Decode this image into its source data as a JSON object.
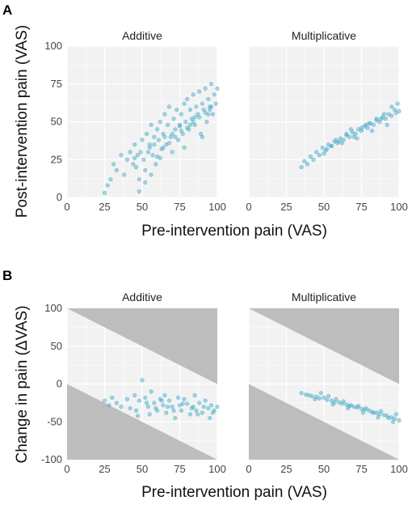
{
  "panel_labels": [
    "A",
    "B"
  ],
  "facets": [
    "Additive",
    "Multiplicative"
  ],
  "panel_a": {
    "ylabel": "Post-intervention pain (VAS)",
    "xlabel": "Pre-intervention pain (VAS)",
    "xticks": [
      0,
      25,
      50,
      75,
      100
    ],
    "yticks": [
      0,
      25,
      50,
      75,
      100
    ]
  },
  "panel_b": {
    "ylabel": "Change in pain (ΔVAS)",
    "xlabel": "Pre-intervention pain (VAS)",
    "xticks": [
      0,
      25,
      50,
      75,
      100
    ],
    "yticks": [
      -100,
      -50,
      0,
      50,
      100
    ]
  },
  "colors": {
    "point": "#3ca7c6",
    "panel_bg": "#f2f2f2",
    "grid": "#ffffff",
    "shade": "#bdbdbd"
  },
  "chart_data": [
    {
      "type": "scatter",
      "panel": "A",
      "title": "Additive",
      "xlabel": "Pre-intervention pain (VAS)",
      "ylabel": "Post-intervention pain (VAS)",
      "xlim": [
        0,
        100
      ],
      "ylim": [
        0,
        100
      ],
      "grid": true,
      "x": [
        25,
        27,
        29,
        31,
        33,
        36,
        38,
        40,
        42,
        44,
        45,
        46,
        47,
        48,
        49,
        50,
        51,
        52,
        53,
        54,
        55,
        56,
        57,
        58,
        59,
        60,
        61,
        62,
        63,
        64,
        65,
        66,
        67,
        68,
        69,
        70,
        71,
        72,
        73,
        74,
        75,
        76,
        77,
        78,
        79,
        80,
        81,
        82,
        83,
        84,
        85,
        86,
        87,
        88,
        89,
        90,
        91,
        92,
        93,
        94,
        95,
        96,
        97,
        98,
        99,
        100,
        48,
        52,
        56,
        60,
        64,
        68,
        72,
        76,
        80,
        84,
        88,
        92,
        96,
        55,
        65,
        75,
        85,
        95,
        45,
        58,
        70,
        82,
        94,
        62,
        78,
        90
      ],
      "y": [
        3,
        8,
        12,
        22,
        18,
        28,
        15,
        25,
        30,
        22,
        35,
        20,
        28,
        12,
        30,
        38,
        25,
        18,
        42,
        30,
        35,
        48,
        28,
        40,
        22,
        45,
        38,
        50,
        32,
        42,
        55,
        35,
        48,
        60,
        40,
        30,
        52,
        45,
        58,
        38,
        48,
        55,
        42,
        62,
        50,
        65,
        45,
        58,
        52,
        68,
        48,
        60,
        55,
        70,
        42,
        62,
        58,
        72,
        50,
        65,
        60,
        75,
        55,
        68,
        62,
        72,
        4,
        10,
        15,
        27,
        33,
        36,
        40,
        44,
        46,
        50,
        53,
        56,
        60,
        33,
        40,
        47,
        53,
        58,
        26,
        35,
        42,
        48,
        55,
        26,
        33,
        40
      ]
    },
    {
      "type": "scatter",
      "panel": "A",
      "title": "Multiplicative",
      "xlabel": "Pre-intervention pain (VAS)",
      "ylabel": "Post-intervention pain (VAS)",
      "xlim": [
        0,
        100
      ],
      "ylim": [
        0,
        100
      ],
      "grid": true,
      "x": [
        35,
        37,
        39,
        41,
        43,
        45,
        47,
        49,
        51,
        53,
        55,
        57,
        59,
        61,
        63,
        65,
        67,
        69,
        71,
        73,
        75,
        77,
        79,
        81,
        83,
        85,
        87,
        89,
        91,
        93,
        95,
        97,
        99,
        100,
        50,
        55,
        60,
        65,
        70,
        75,
        80,
        85,
        90,
        95,
        52,
        62,
        72,
        82,
        92,
        58,
        68,
        78,
        88,
        98
      ],
      "y": [
        20,
        24,
        22,
        27,
        25,
        30,
        28,
        33,
        31,
        35,
        34,
        37,
        36,
        39,
        38,
        41,
        40,
        43,
        42,
        45,
        44,
        47,
        46,
        49,
        48,
        51,
        50,
        53,
        52,
        55,
        54,
        58,
        62,
        57,
        29,
        34,
        37,
        42,
        40,
        46,
        49,
        52,
        55,
        60,
        32,
        36,
        39,
        44,
        48,
        38,
        45,
        48,
        52,
        56
      ]
    },
    {
      "type": "scatter",
      "panel": "B",
      "title": "Additive",
      "xlabel": "Pre-intervention pain (VAS)",
      "ylabel": "Change in pain (ΔVAS)",
      "xlim": [
        0,
        100
      ],
      "ylim": [
        -100,
        100
      ],
      "grid": true,
      "shaded_regions": "outside bounds y >= -x and y <= 100 - x",
      "x": [
        25,
        28,
        30,
        33,
        36,
        40,
        42,
        45,
        47,
        48,
        50,
        52,
        54,
        55,
        56,
        58,
        60,
        62,
        64,
        65,
        66,
        68,
        70,
        72,
        74,
        75,
        76,
        78,
        80,
        82,
        84,
        85,
        86,
        88,
        90,
        92,
        94,
        95,
        96,
        98,
        100,
        46,
        53,
        59,
        63,
        67,
        71,
        77,
        83,
        87,
        91,
        97
      ],
      "y": [
        -22,
        -28,
        -18,
        -25,
        -30,
        -20,
        -32,
        -15,
        -42,
        -22,
        5,
        -18,
        -30,
        -40,
        -10,
        -25,
        -35,
        -20,
        -28,
        -15,
        -38,
        -22,
        -30,
        -45,
        -18,
        -28,
        -35,
        -20,
        -26,
        -40,
        -30,
        -15,
        -35,
        -25,
        -38,
        -22,
        -32,
        -45,
        -28,
        -35,
        -30,
        -35,
        -25,
        -32,
        -22,
        -30,
        -35,
        -26,
        -32,
        -40,
        -30,
        -38
      ]
    },
    {
      "type": "scatter",
      "panel": "B",
      "title": "Multiplicative",
      "xlabel": "Pre-intervention pain (VAS)",
      "ylabel": "Change in pain (ΔVAS)",
      "xlim": [
        0,
        100
      ],
      "ylim": [
        -100,
        100
      ],
      "grid": true,
      "shaded_regions": "outside bounds y >= -x and y <= 100 - x",
      "x": [
        35,
        38,
        40,
        42,
        45,
        47,
        50,
        52,
        55,
        57,
        60,
        62,
        65,
        67,
        70,
        72,
        75,
        77,
        80,
        82,
        85,
        87,
        90,
        92,
        95,
        97,
        100,
        48,
        53,
        58,
        63,
        68,
        73,
        78,
        83,
        88,
        93,
        98,
        44,
        56,
        66,
        76,
        86,
        96
      ],
      "y": [
        -12,
        -14,
        -15,
        -16,
        -17,
        -19,
        -18,
        -21,
        -22,
        -24,
        -24,
        -26,
        -27,
        -29,
        -30,
        -31,
        -33,
        -34,
        -35,
        -37,
        -38,
        -40,
        -41,
        -42,
        -44,
        -46,
        -48,
        -12,
        -16,
        -20,
        -23,
        -28,
        -29,
        -32,
        -38,
        -36,
        -45,
        -40,
        -20,
        -27,
        -32,
        -38,
        -44,
        -50
      ]
    }
  ]
}
